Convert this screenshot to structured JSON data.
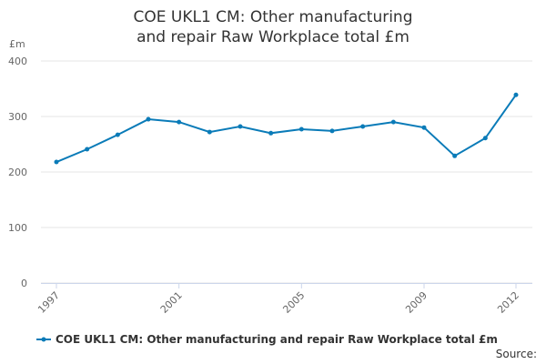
{
  "chart_data": {
    "type": "line",
    "title": "COE UKL1 CM: Other manufacturing and repair Raw Workplace total £m",
    "y_label": "£m",
    "source": "Source:",
    "x": [
      1997,
      1998,
      1999,
      2000,
      2001,
      2002,
      2003,
      2004,
      2005,
      2006,
      2007,
      2008,
      2009,
      2010,
      2011,
      2012
    ],
    "series": [
      {
        "name": "COE UKL1 CM: Other manufacturing and repair Raw Workplace total £m",
        "color": "#0a7bb8",
        "values": [
          218,
          241,
          267,
          295,
          290,
          272,
          282,
          270,
          277,
          274,
          282,
          290,
          280,
          229,
          261,
          339
        ]
      }
    ],
    "xlim": [
      1997,
      2012
    ],
    "xticks": [
      1997,
      2001,
      2005,
      2009,
      2012
    ],
    "ylim": [
      0,
      400
    ],
    "yticks": [
      0,
      100,
      200,
      300,
      400
    ],
    "grid": true
  }
}
